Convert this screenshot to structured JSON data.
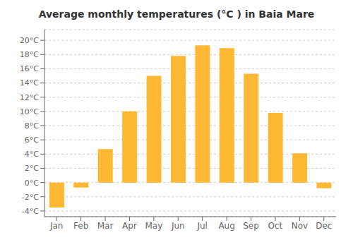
{
  "chart_data": {
    "type": "bar",
    "title": "Average monthly temperatures (°C ) in Baia Mare",
    "categories": [
      "Jan",
      "Feb",
      "Mar",
      "Apr",
      "May",
      "Jun",
      "Jul",
      "Aug",
      "Sep",
      "Oct",
      "Nov",
      "Dec"
    ],
    "values": [
      -3.5,
      -0.7,
      4.7,
      10.0,
      15.0,
      17.8,
      19.3,
      18.9,
      15.3,
      9.8,
      4.1,
      -0.8
    ],
    "color": "#FFB833",
    "ylim": [
      -4.8,
      21.5
    ],
    "yticks": [
      {
        "value": -4,
        "label": "-4°C"
      },
      {
        "value": -2,
        "label": "-2°C"
      },
      {
        "value": 0,
        "label": "0°C"
      },
      {
        "value": 2,
        "label": "2°C"
      },
      {
        "value": 4,
        "label": "4°C"
      },
      {
        "value": 6,
        "label": "6°C"
      },
      {
        "value": 8,
        "label": "8°C"
      },
      {
        "value": 10,
        "label": "10°C"
      },
      {
        "value": 12,
        "label": "12°C"
      },
      {
        "value": 14,
        "label": "14°C"
      },
      {
        "value": 16,
        "label": "16°C"
      },
      {
        "value": 18,
        "label": "18°C"
      },
      {
        "value": 20,
        "label": "20°C"
      }
    ],
    "grid": true
  }
}
